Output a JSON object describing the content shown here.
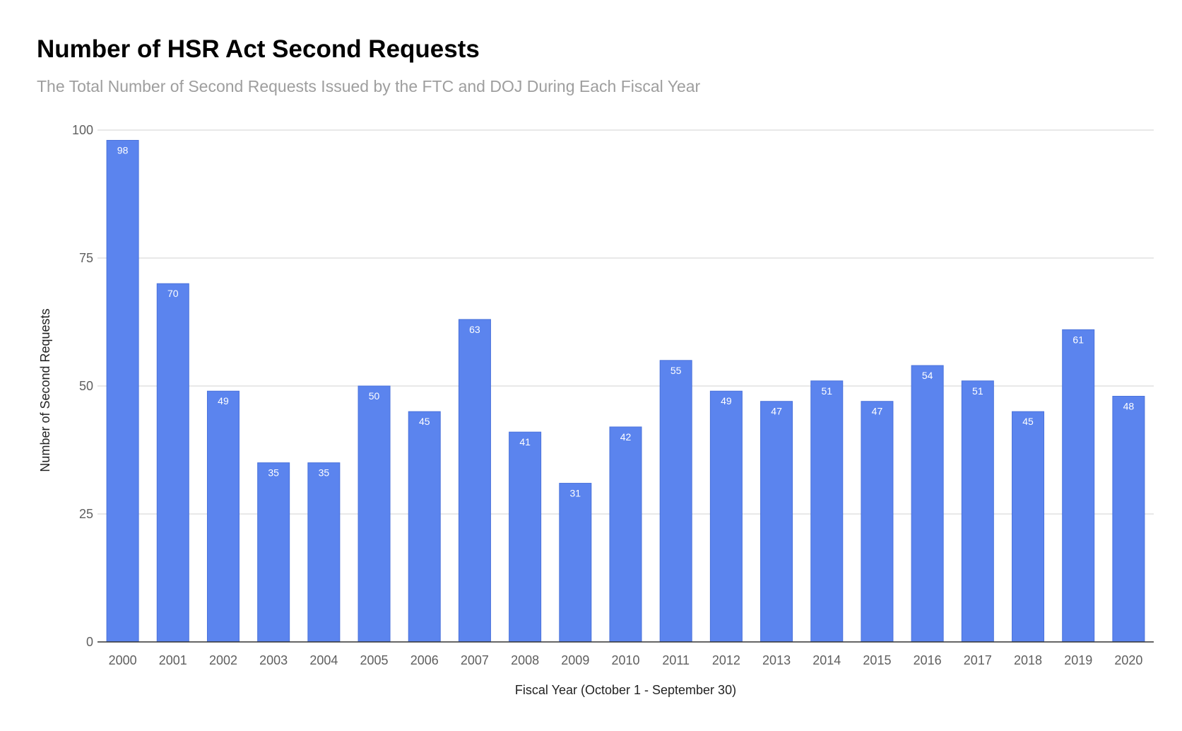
{
  "chart_data": {
    "type": "bar",
    "title": "Number of HSR Act Second Requests",
    "subtitle": "The Total Number of Second Requests Issued by the FTC and DOJ During Each Fiscal Year",
    "xlabel": "Fiscal Year (October 1 - September 30)",
    "ylabel": "Number of Second Requests",
    "categories": [
      "2000",
      "2001",
      "2002",
      "2003",
      "2004",
      "2005",
      "2006",
      "2007",
      "2008",
      "2009",
      "2010",
      "2011",
      "2012",
      "2013",
      "2014",
      "2015",
      "2016",
      "2017",
      "2018",
      "2019",
      "2020"
    ],
    "values": [
      98,
      70,
      49,
      35,
      35,
      50,
      45,
      63,
      41,
      31,
      42,
      55,
      49,
      47,
      51,
      47,
      54,
      51,
      45,
      61,
      48
    ],
    "ylim": [
      0,
      100
    ],
    "yticks": [
      0,
      25,
      50,
      75,
      100
    ],
    "grid": true,
    "legend": "none",
    "data_labels": true,
    "colors": {
      "bar": "#5b84ee",
      "bar_edge": "#4a72db",
      "grid": "#d0d0d0",
      "axis": "#333333",
      "data_label": "#ffffff"
    }
  }
}
